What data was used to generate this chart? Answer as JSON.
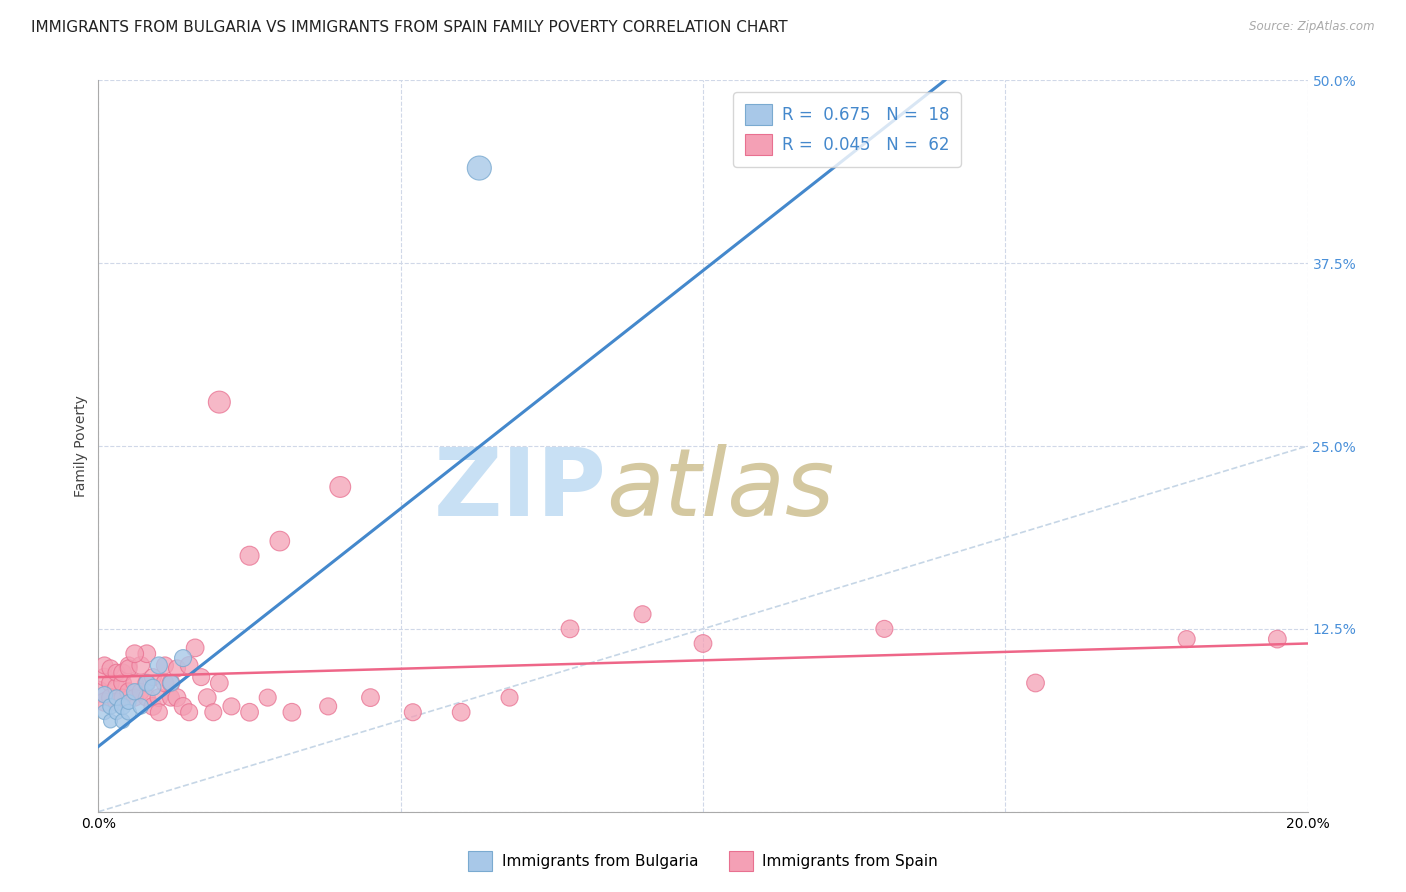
{
  "title": "IMMIGRANTS FROM BULGARIA VS IMMIGRANTS FROM SPAIN FAMILY POVERTY CORRELATION CHART",
  "source": "Source: ZipAtlas.com",
  "ylabel": "Family Poverty",
  "legend_bulgaria": "Immigrants from Bulgaria",
  "legend_spain": "Immigrants from Spain",
  "R_bulgaria": "0.675",
  "N_bulgaria": "18",
  "R_spain": "0.045",
  "N_spain": "62",
  "bulgaria_dot_color": "#a8c8e8",
  "spain_dot_color": "#f4a0b5",
  "bulgaria_dot_edge": "#7aaad0",
  "spain_dot_edge": "#e87090",
  "bulgaria_line_color": "#4488cc",
  "spain_line_color": "#ee6688",
  "reference_line_color": "#b8cce0",
  "legend_text_color": "#4488cc",
  "tick_color_right": "#4a90d9",
  "grid_color": "#d0d8e8",
  "background_color": "#ffffff",
  "title_fontsize": 11,
  "axis_label_fontsize": 10,
  "tick_fontsize": 10,
  "xmin": 0.0,
  "xmax": 0.2,
  "ymin": 0.0,
  "ymax": 0.5,
  "bulgaria_x": [
    0.001,
    0.001,
    0.002,
    0.002,
    0.003,
    0.003,
    0.004,
    0.004,
    0.005,
    0.005,
    0.006,
    0.007,
    0.008,
    0.009,
    0.01,
    0.012,
    0.014,
    0.063
  ],
  "bulgaria_y": [
    0.08,
    0.068,
    0.072,
    0.062,
    0.068,
    0.078,
    0.062,
    0.072,
    0.068,
    0.075,
    0.082,
    0.072,
    0.088,
    0.085,
    0.1,
    0.088,
    0.105,
    0.44
  ],
  "bulgaria_sizes": [
    55,
    45,
    50,
    40,
    45,
    50,
    45,
    55,
    50,
    45,
    55,
    50,
    55,
    55,
    60,
    55,
    60,
    120
  ],
  "spain_x": [
    0.0,
    0.001,
    0.001,
    0.001,
    0.002,
    0.002,
    0.002,
    0.003,
    0.003,
    0.003,
    0.004,
    0.004,
    0.004,
    0.005,
    0.005,
    0.005,
    0.006,
    0.006,
    0.007,
    0.007,
    0.008,
    0.008,
    0.009,
    0.009,
    0.01,
    0.01,
    0.011,
    0.011,
    0.012,
    0.012,
    0.013,
    0.013,
    0.014,
    0.015,
    0.016,
    0.017,
    0.018,
    0.019,
    0.02,
    0.022,
    0.025,
    0.028,
    0.032,
    0.038,
    0.045,
    0.052,
    0.06,
    0.068,
    0.078,
    0.09,
    0.1,
    0.13,
    0.155,
    0.18,
    0.195,
    0.02,
    0.03,
    0.04,
    0.025,
    0.015,
    0.008,
    0.006
  ],
  "spain_y": [
    0.082,
    0.092,
    0.1,
    0.075,
    0.088,
    0.098,
    0.078,
    0.085,
    0.095,
    0.075,
    0.088,
    0.078,
    0.095,
    0.1,
    0.082,
    0.098,
    0.088,
    0.078,
    0.1,
    0.082,
    0.088,
    0.078,
    0.072,
    0.092,
    0.078,
    0.068,
    0.088,
    0.1,
    0.088,
    0.078,
    0.078,
    0.098,
    0.072,
    0.068,
    0.112,
    0.092,
    0.078,
    0.068,
    0.088,
    0.072,
    0.068,
    0.078,
    0.068,
    0.072,
    0.078,
    0.068,
    0.068,
    0.078,
    0.125,
    0.135,
    0.115,
    0.125,
    0.088,
    0.118,
    0.118,
    0.28,
    0.185,
    0.222,
    0.175,
    0.1,
    0.108,
    0.108
  ],
  "spain_sizes": [
    90,
    65,
    60,
    70,
    65,
    60,
    65,
    65,
    60,
    65,
    65,
    60,
    65,
    60,
    65,
    60,
    65,
    60,
    65,
    60,
    65,
    60,
    65,
    60,
    65,
    60,
    65,
    60,
    65,
    60,
    65,
    60,
    65,
    60,
    65,
    60,
    65,
    60,
    65,
    60,
    65,
    60,
    65,
    60,
    65,
    60,
    65,
    60,
    65,
    60,
    65,
    60,
    65,
    60,
    65,
    100,
    80,
    90,
    75,
    65,
    65,
    65
  ]
}
